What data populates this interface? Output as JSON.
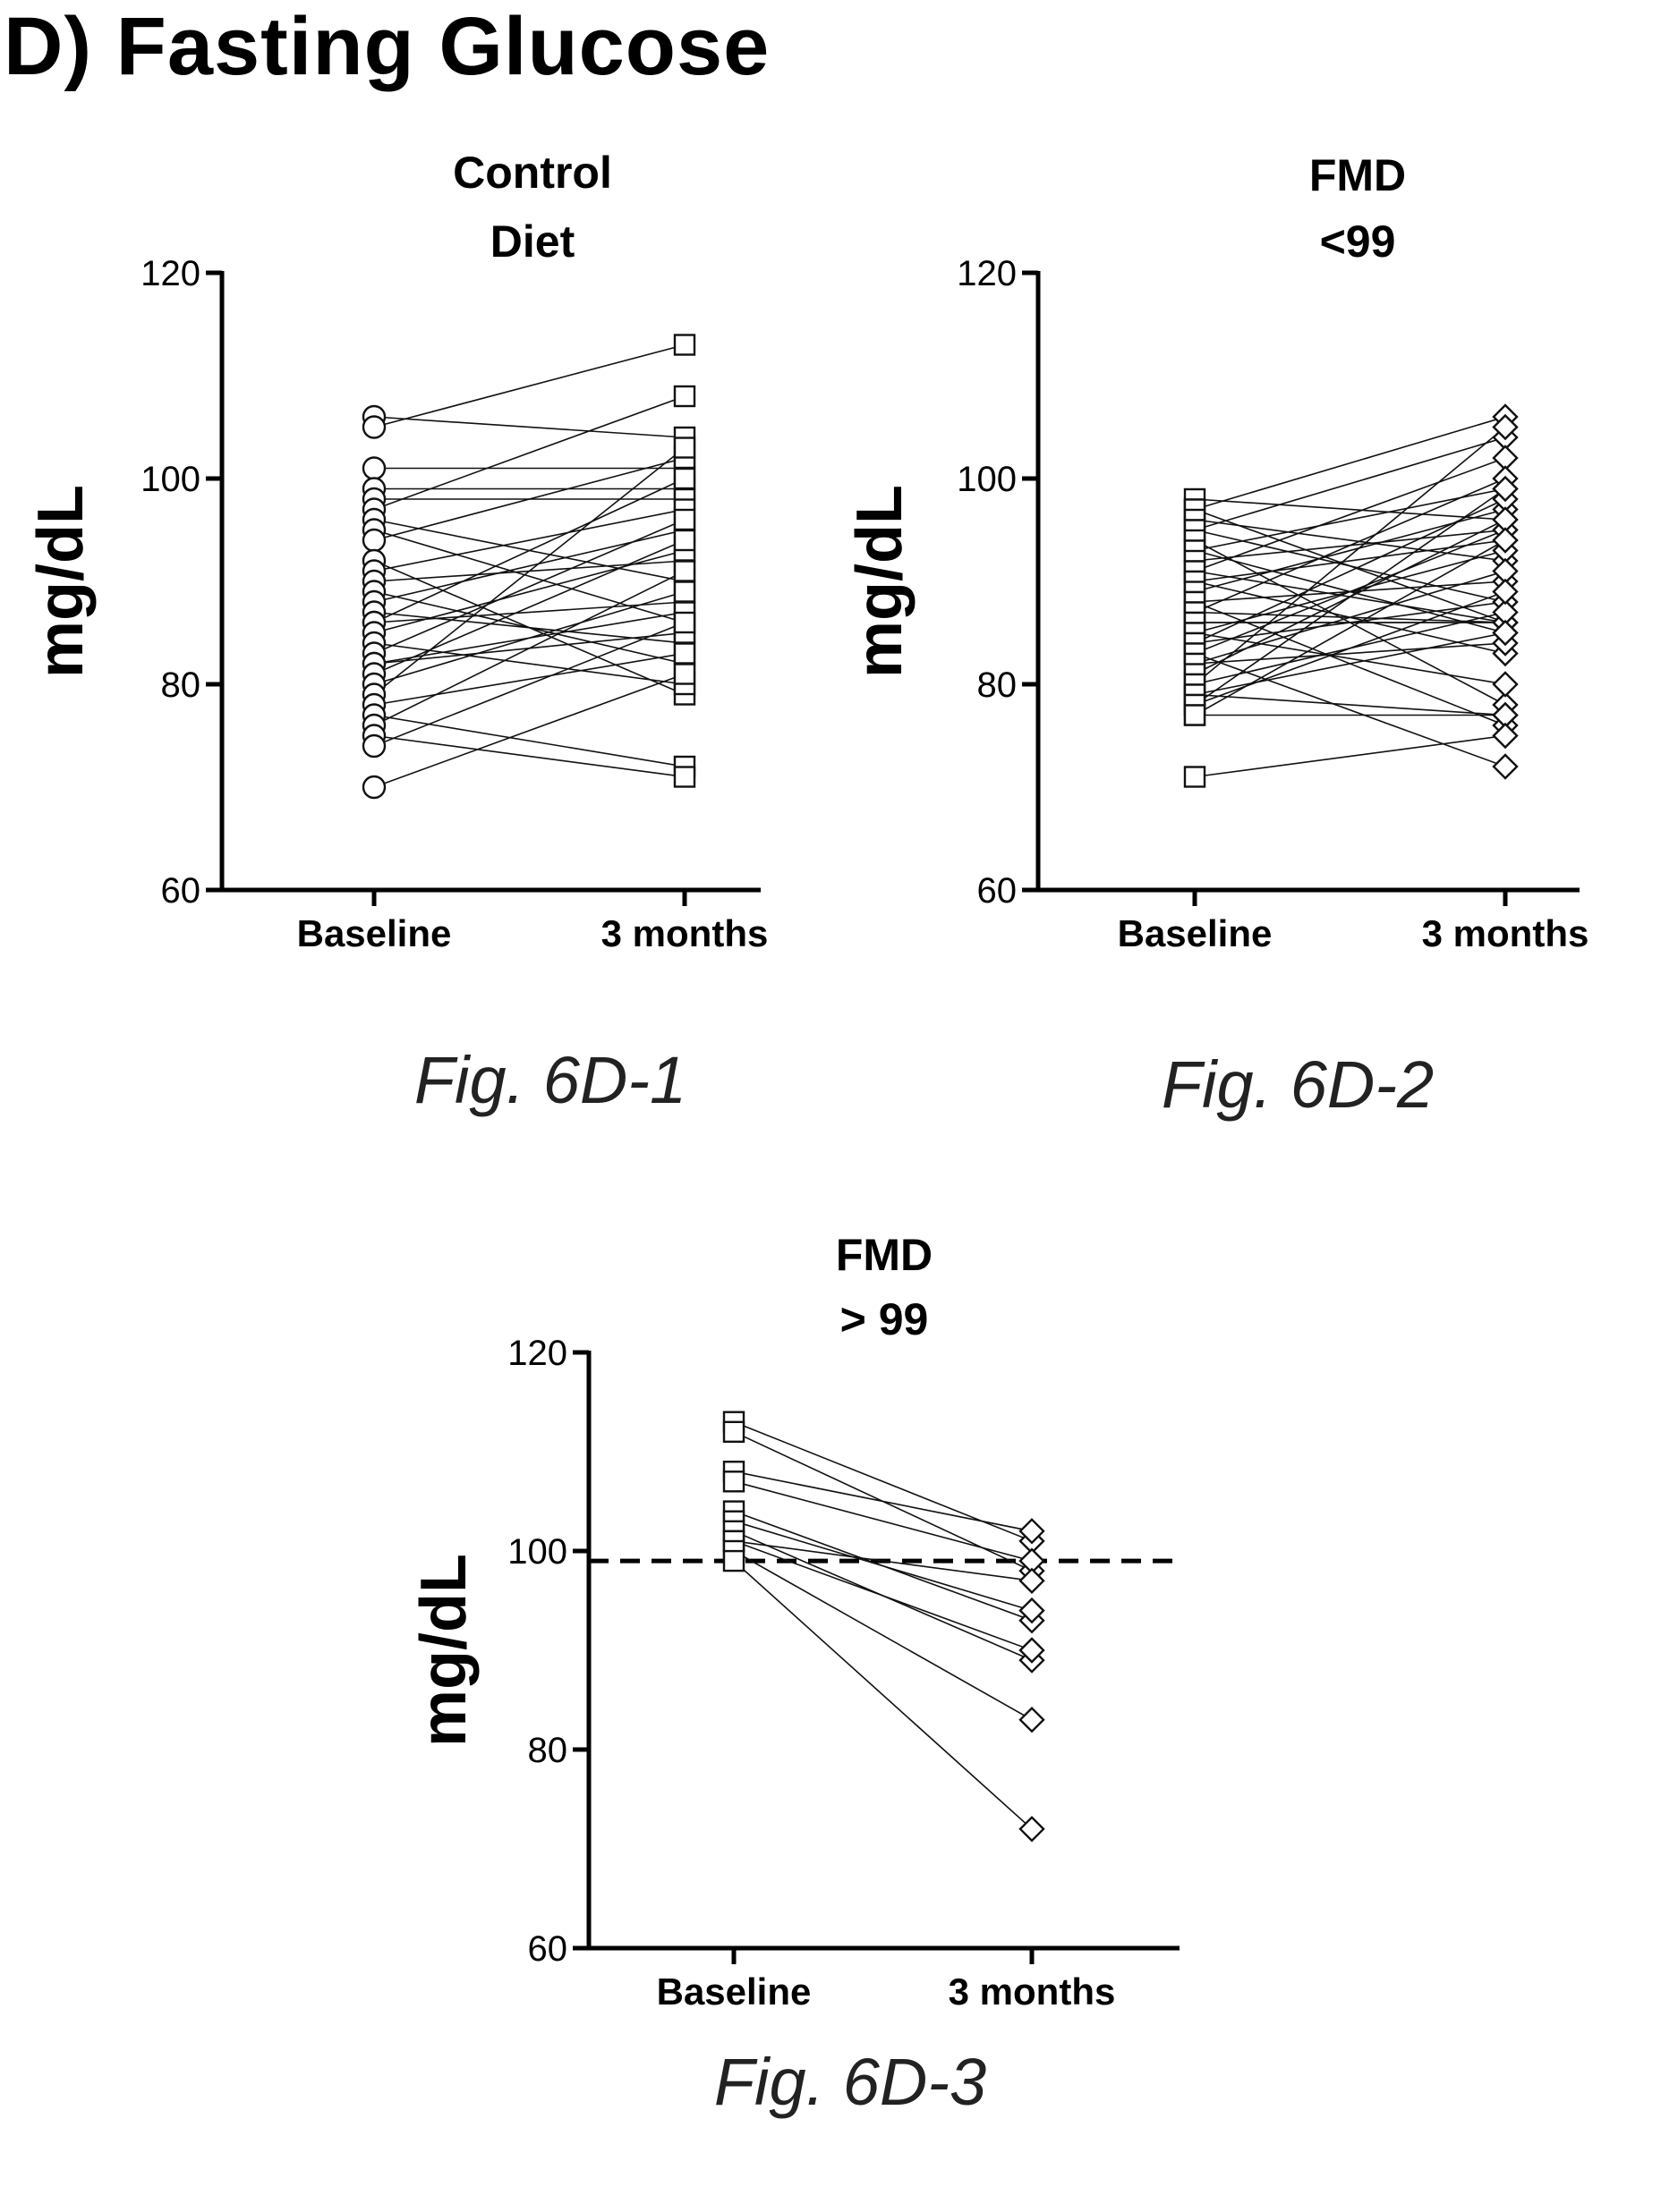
{
  "title": "D) Fasting Glucose",
  "chart_data": [
    {
      "type": "line",
      "figure_label": "Fig. 6D-1",
      "title_lines": [
        "Control",
        "Diet"
      ],
      "ylabel": "mg/dL",
      "categories": [
        "Baseline",
        "3 months"
      ],
      "ylim": [
        60,
        120
      ],
      "yticks": [
        "60",
        "80",
        "100",
        "120"
      ],
      "marker_baseline": "circle",
      "marker_followup": "square",
      "reference_line": null,
      "pairs": [
        [
          106,
          104
        ],
        [
          105,
          113
        ],
        [
          101,
          101
        ],
        [
          99,
          99
        ],
        [
          98,
          98
        ],
        [
          97,
          108
        ],
        [
          96,
          90
        ],
        [
          95,
          86
        ],
        [
          94,
          102
        ],
        [
          92,
          79
        ],
        [
          91,
          97
        ],
        [
          90,
          92
        ],
        [
          89,
          82
        ],
        [
          88,
          95
        ],
        [
          87,
          84
        ],
        [
          86,
          100
        ],
        [
          86,
          88
        ],
        [
          85,
          93
        ],
        [
          84,
          80
        ],
        [
          83,
          96
        ],
        [
          82,
          87
        ],
        [
          82,
          85
        ],
        [
          81,
          94
        ],
        [
          80,
          89
        ],
        [
          79,
          103
        ],
        [
          78,
          83
        ],
        [
          77,
          72
        ],
        [
          76,
          91
        ],
        [
          75,
          71
        ],
        [
          74,
          86
        ],
        [
          70,
          81
        ]
      ]
    },
    {
      "type": "line",
      "figure_label": "Fig. 6D-2",
      "title_lines": [
        "FMD",
        "<99"
      ],
      "ylabel": "mg/dL",
      "categories": [
        "Baseline",
        "3 months"
      ],
      "ylim": [
        60,
        120
      ],
      "yticks": [
        "60",
        "80",
        "100",
        "120"
      ],
      "marker_baseline": "square",
      "marker_followup": "diamond",
      "reference_line": null,
      "pairs": [
        [
          98,
          96
        ],
        [
          97,
          106
        ],
        [
          97,
          86
        ],
        [
          96,
          92
        ],
        [
          95,
          104
        ],
        [
          95,
          88
        ],
        [
          94,
          78
        ],
        [
          93,
          99
        ],
        [
          93,
          85
        ],
        [
          92,
          95
        ],
        [
          91,
          86
        ],
        [
          91,
          102
        ],
        [
          90,
          83
        ],
        [
          90,
          94
        ],
        [
          89,
          97
        ],
        [
          88,
          76
        ],
        [
          88,
          90
        ],
        [
          87,
          86
        ],
        [
          87,
          100
        ],
        [
          86,
          86
        ],
        [
          86,
          86
        ],
        [
          85,
          93
        ],
        [
          85,
          80
        ],
        [
          84,
          98
        ],
        [
          84,
          88
        ],
        [
          83,
          72
        ],
        [
          83,
          95
        ],
        [
          82,
          91
        ],
        [
          82,
          84
        ],
        [
          81,
          96
        ],
        [
          80,
          87
        ],
        [
          80,
          105
        ],
        [
          79,
          85
        ],
        [
          79,
          77
        ],
        [
          78,
          99
        ],
        [
          78,
          89
        ],
        [
          77,
          77
        ],
        [
          77,
          94
        ],
        [
          71,
          75
        ]
      ]
    },
    {
      "type": "line",
      "figure_label": "Fig. 6D-3",
      "title_lines": [
        "FMD",
        "> 99"
      ],
      "ylabel": "mg/dL",
      "categories": [
        "Baseline",
        "3 months"
      ],
      "ylim": [
        60,
        120
      ],
      "yticks": [
        "60",
        "80",
        "100",
        "120"
      ],
      "marker_baseline": "square",
      "marker_followup": "diamond",
      "reference_line": 99,
      "pairs": [
        [
          113,
          101
        ],
        [
          112,
          98
        ],
        [
          108,
          102
        ],
        [
          107,
          99
        ],
        [
          104,
          93
        ],
        [
          103,
          94
        ],
        [
          102,
          89
        ],
        [
          101,
          90
        ],
        [
          101,
          97
        ],
        [
          100,
          83
        ],
        [
          99,
          72
        ]
      ]
    }
  ]
}
